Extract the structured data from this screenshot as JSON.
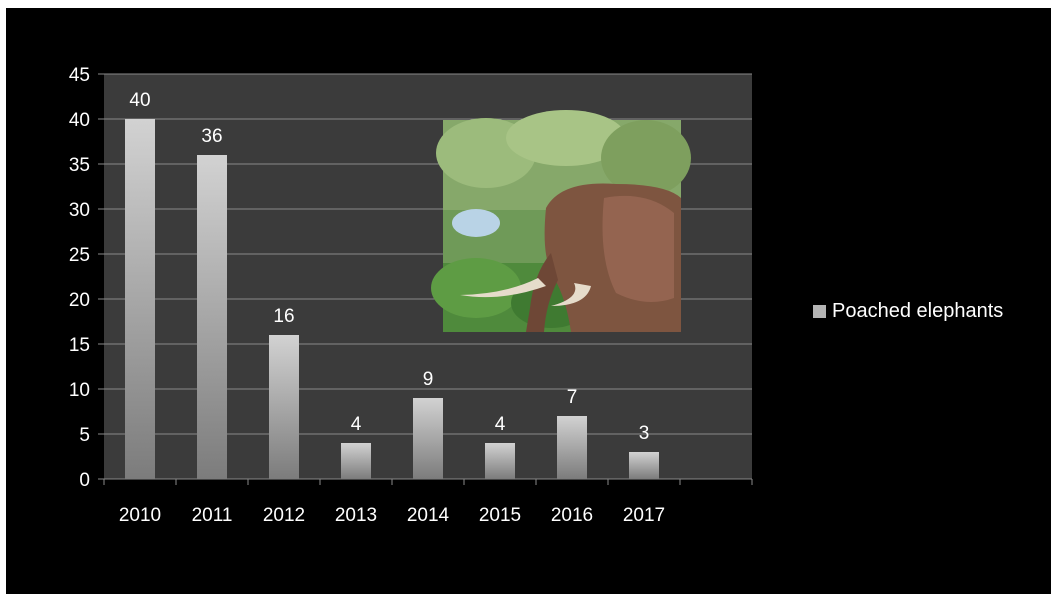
{
  "colors": {
    "background": "#000000",
    "plot_area": "#3b3b3b",
    "gridline": "#8a8a8a",
    "bar_top": "#d2d2d2",
    "bar_bottom": "#7c7c7c",
    "legend_swatch": "#b4b4b4",
    "text": "#ffffff"
  },
  "photo": {
    "icon": "elephant-photo",
    "description_colors": [
      "#5f8a4a",
      "#8a5a3e"
    ]
  },
  "chart_data": {
    "type": "bar",
    "title": "",
    "xlabel": "",
    "ylabel": "",
    "categories": [
      "2010",
      "2011",
      "2012",
      "2013",
      "2014",
      "2015",
      "2016",
      "2017"
    ],
    "series": [
      {
        "name": "Poached elephants",
        "values": [
          40,
          36,
          16,
          4,
          9,
          4,
          7,
          3
        ]
      }
    ],
    "ylim": [
      0,
      45
    ],
    "yticks": [
      0,
      5,
      10,
      15,
      20,
      25,
      30,
      35,
      40,
      45
    ],
    "grid": true,
    "legend": "right",
    "data_labels": true
  }
}
